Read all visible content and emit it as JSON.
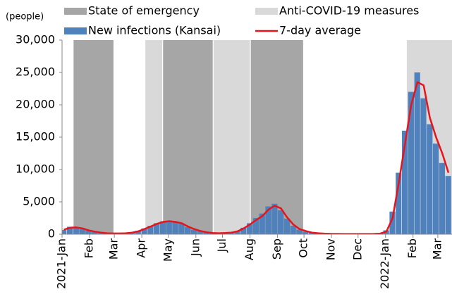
{
  "chart_data": {
    "type": "bar-line",
    "y_unit_label": "(people)",
    "x": [
      "2021-01-03",
      "2021-01-10",
      "2021-01-17",
      "2021-01-24",
      "2021-01-31",
      "2021-02-07",
      "2021-02-14",
      "2021-02-21",
      "2021-02-28",
      "2021-03-07",
      "2021-03-14",
      "2021-03-21",
      "2021-03-28",
      "2021-04-04",
      "2021-04-11",
      "2021-04-18",
      "2021-04-25",
      "2021-05-02",
      "2021-05-09",
      "2021-05-16",
      "2021-05-23",
      "2021-05-30",
      "2021-06-06",
      "2021-06-13",
      "2021-06-20",
      "2021-06-27",
      "2021-07-04",
      "2021-07-11",
      "2021-07-18",
      "2021-07-25",
      "2021-08-01",
      "2021-08-08",
      "2021-08-15",
      "2021-08-22",
      "2021-08-29",
      "2021-09-05",
      "2021-09-12",
      "2021-09-19",
      "2021-09-26",
      "2021-10-03",
      "2021-10-10",
      "2021-10-17",
      "2021-10-24",
      "2021-10-31",
      "2021-11-07",
      "2021-11-14",
      "2021-11-21",
      "2021-11-28",
      "2021-12-05",
      "2021-12-12",
      "2021-12-19",
      "2021-12-26",
      "2022-01-02",
      "2022-01-09",
      "2022-01-16",
      "2022-01-23",
      "2022-01-30",
      "2022-02-06",
      "2022-02-13",
      "2022-02-20",
      "2022-02-27",
      "2022-03-06",
      "2022-03-13"
    ],
    "series": [
      {
        "name": "New infections (Kansai)",
        "kind": "bar",
        "color": "#4f81bd",
        "values": [
          650,
          1150,
          1000,
          800,
          520,
          380,
          220,
          140,
          110,
          130,
          170,
          300,
          520,
          900,
          1300,
          1700,
          2000,
          2100,
          1850,
          1600,
          1100,
          700,
          450,
          280,
          180,
          160,
          200,
          300,
          500,
          1000,
          1700,
          2500,
          3200,
          4300,
          4700,
          3700,
          2400,
          1300,
          700,
          420,
          220,
          130,
          90,
          60,
          45,
          35,
          38,
          40,
          42,
          45,
          60,
          120,
          600,
          3500,
          9500,
          16000,
          22000,
          25000,
          21000,
          17000,
          14000,
          11000,
          9000
        ]
      },
      {
        "name": "7-day average",
        "kind": "line",
        "color": "#e8141b",
        "values": [
          700,
          1000,
          1050,
          900,
          600,
          400,
          250,
          150,
          120,
          120,
          150,
          250,
          450,
          800,
          1200,
          1600,
          1900,
          2000,
          1900,
          1700,
          1200,
          800,
          500,
          300,
          200,
          150,
          180,
          250,
          450,
          900,
          1500,
          2200,
          2800,
          3800,
          4400,
          4000,
          2600,
          1500,
          800,
          500,
          250,
          150,
          100,
          70,
          50,
          40,
          40,
          40,
          40,
          40,
          50,
          100,
          400,
          2500,
          8000,
          14000,
          20000,
          23500,
          23000,
          18000,
          15000,
          12500,
          9500
        ]
      }
    ],
    "periods": [
      {
        "name": "State of emergency",
        "color": "#a6a6a6",
        "ranges": [
          [
            "2021-01-14",
            "2021-02-28"
          ],
          [
            "2021-04-25",
            "2021-06-20"
          ],
          [
            "2021-08-02",
            "2021-09-30"
          ]
        ]
      },
      {
        "name": "Anti-COVID-19 measures",
        "color": "#d9d9d9",
        "ranges": [
          [
            "2021-04-05",
            "2021-04-24"
          ],
          [
            "2021-06-21",
            "2021-08-01"
          ],
          [
            "2022-01-25",
            "2022-03-17"
          ]
        ]
      }
    ],
    "xlim": [
      "2021-01-01",
      "2022-03-17"
    ],
    "xticks": [
      {
        "value": "2021-01-01",
        "label": "2021-Jan"
      },
      {
        "value": "2021-02-01",
        "label": "Feb"
      },
      {
        "value": "2021-03-01",
        "label": "Mar"
      },
      {
        "value": "2021-04-01",
        "label": "Apr"
      },
      {
        "value": "2021-05-01",
        "label": "May"
      },
      {
        "value": "2021-06-01",
        "label": "Jun"
      },
      {
        "value": "2021-07-01",
        "label": "Jul"
      },
      {
        "value": "2021-08-01",
        "label": "Aug"
      },
      {
        "value": "2021-09-01",
        "label": "Sep"
      },
      {
        "value": "2021-10-01",
        "label": "Oct"
      },
      {
        "value": "2021-11-01",
        "label": "Nov"
      },
      {
        "value": "2021-12-01",
        "label": "Dec"
      },
      {
        "value": "2022-01-01",
        "label": "2022-Jan"
      },
      {
        "value": "2022-02-01",
        "label": "Feb"
      },
      {
        "value": "2022-03-01",
        "label": "Mar"
      }
    ],
    "ylim": [
      0,
      30000
    ],
    "yticks": [
      0,
      {
        "value": 5000,
        "label": "5,000"
      },
      {
        "value": 10000,
        "label": "10,000"
      },
      {
        "value": 15000,
        "label": "15,000"
      },
      {
        "value": 20000,
        "label": "20,000"
      },
      {
        "value": 25000,
        "label": "25,000"
      },
      {
        "value": 30000,
        "label": "30,000"
      }
    ]
  }
}
